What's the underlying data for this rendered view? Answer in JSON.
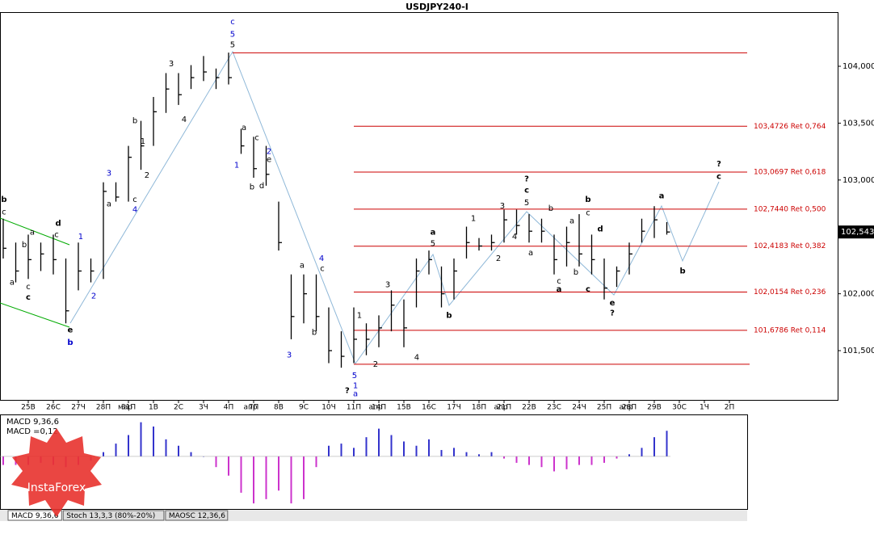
{
  "chart_data": {
    "type": "ohlc",
    "title": "USDJPY240-I",
    "categories": [
      null,
      null,
      "25В",
      null,
      "26С",
      null,
      "27Ч",
      null,
      "28П",
      null,
      "31П",
      null,
      "1В",
      null,
      "2С",
      null,
      "3Ч",
      null,
      "4П",
      null,
      "7П",
      null,
      "8В",
      null,
      "9С",
      null,
      "10Ч",
      null,
      "11П",
      null,
      "14П",
      null,
      "15В",
      null,
      "16С",
      null,
      "17Ч",
      null,
      "18П",
      null,
      "21П",
      null,
      "22В",
      null,
      "23С",
      null,
      "24Ч",
      null,
      "25П",
      null,
      "28П",
      null,
      "29В",
      null,
      "30С",
      null,
      "1Ч",
      null,
      "2П",
      null
    ],
    "month_labels": [
      null,
      null,
      null,
      null,
      null,
      null,
      null,
      null,
      null,
      null,
      "мар",
      null,
      null,
      null,
      null,
      null,
      null,
      null,
      null,
      null,
      "апр",
      null,
      null,
      null,
      null,
      null,
      null,
      null,
      null,
      null,
      "апр",
      null,
      null,
      null,
      null,
      null,
      null,
      null,
      null,
      null,
      "апр",
      null,
      null,
      null,
      null,
      null,
      null,
      null,
      null,
      null,
      "апр",
      null,
      null,
      null,
      null,
      null,
      null,
      null,
      null,
      null
    ],
    "high": [
      102.66,
      102.45,
      102.52,
      102.45,
      102.52,
      102.31,
      102.45,
      102.31,
      102.98,
      102.98,
      103.3,
      103.52,
      103.73,
      103.94,
      103.94,
      104.01,
      104.09,
      103.98,
      104.12,
      103.45,
      103.38,
      103.3,
      102.81,
      102.17,
      102.17,
      102.17,
      101.88,
      101.67,
      101.88,
      101.74,
      101.81,
      102.03,
      101.95,
      102.31,
      102.38,
      102.24,
      102.31,
      102.59,
      102.49,
      102.52,
      102.74,
      102.74,
      102.7,
      102.66,
      102.52,
      102.59,
      102.7,
      102.52,
      102.31,
      102.24,
      102.45,
      102.66,
      102.77,
      102.63,
      null,
      null,
      null,
      null,
      null,
      null
    ],
    "low": [
      102.31,
      102.1,
      102.13,
      102.2,
      102.17,
      101.74,
      102.03,
      102.1,
      102.13,
      102.81,
      102.81,
      103.09,
      103.3,
      103.59,
      103.66,
      103.8,
      103.87,
      103.8,
      103.84,
      103.23,
      103.02,
      102.95,
      102.38,
      101.6,
      101.74,
      101.67,
      101.39,
      101.35,
      101.39,
      101.46,
      101.53,
      101.67,
      101.53,
      101.88,
      102.17,
      101.88,
      101.95,
      102.31,
      102.38,
      102.38,
      102.45,
      102.52,
      102.45,
      102.45,
      102.17,
      102.24,
      102.24,
      102.17,
      101.95,
      102.06,
      102.17,
      102.45,
      102.49,
      102.52,
      null,
      null,
      null,
      null,
      null,
      null
    ],
    "close": [
      102.4,
      102.2,
      102.3,
      102.35,
      102.3,
      101.85,
      102.2,
      102.2,
      102.9,
      102.85,
      103.2,
      103.3,
      103.6,
      103.8,
      103.75,
      103.9,
      103.95,
      103.9,
      103.9,
      103.3,
      103.1,
      103.05,
      102.45,
      101.8,
      102.0,
      101.8,
      101.5,
      101.45,
      101.6,
      101.6,
      101.7,
      101.9,
      101.7,
      102.2,
      102.3,
      102.0,
      102.2,
      102.45,
      102.42,
      102.45,
      102.65,
      102.6,
      102.55,
      102.55,
      102.3,
      102.45,
      102.35,
      102.3,
      102.05,
      102.2,
      102.35,
      102.55,
      102.65,
      102.543,
      null,
      null,
      null,
      null,
      null,
      null
    ],
    "bar_color": "#000000",
    "ylim": [
      101.067,
      104.476
    ],
    "yticks": [
      {
        "value": 104,
        "label": "104,000"
      },
      {
        "value": 103.5,
        "label": "103,500"
      },
      {
        "value": 103,
        "label": "103,000"
      },
      {
        "value": 102,
        "label": "102,000"
      },
      {
        "value": 101.5,
        "label": "101,500"
      }
    ],
    "last_price": {
      "value": 102.543,
      "label": "102,543"
    },
    "level_color": "#cc0000",
    "levels": [
      {
        "value": 104.118
      },
      {
        "value": 103.4726,
        "label": "103,4726 Ret 0,764"
      },
      {
        "value": 103.0697,
        "label": "103,0697 Ret 0,618"
      },
      {
        "value": 102.744,
        "label": "102,7440 Ret 0,500"
      },
      {
        "value": 102.4183,
        "label": "102,4183 Ret 0,382"
      },
      {
        "value": 102.0154,
        "label": "102,0154 Ret 0,236"
      },
      {
        "value": 101.6786,
        "label": "101,6786 Ret 0,114"
      },
      {
        "value": 101.38
      }
    ],
    "annotations": [
      {
        "text": "b",
        "slot": 0.06,
        "price": 102.83,
        "color": "#000000",
        "bold": true
      },
      {
        "text": "c",
        "slot": 0.06,
        "price": 102.72,
        "color": "#000000"
      },
      {
        "text": "a",
        "slot": 2.32,
        "price": 102.54,
        "color": "#000000"
      },
      {
        "text": "b",
        "slot": 1.68,
        "price": 102.43,
        "color": "#000000"
      },
      {
        "text": "a",
        "slot": 0.71,
        "price": 102.1,
        "color": "#000000"
      },
      {
        "text": "c",
        "slot": 2,
        "price": 102.06,
        "color": "#000000"
      },
      {
        "text": "c",
        "slot": 2,
        "price": 101.97,
        "color": "#000000",
        "bold": true
      },
      {
        "text": "d",
        "slot": 4.39,
        "price": 102.62,
        "color": "#000000",
        "bold": true
      },
      {
        "text": "c",
        "slot": 4.26,
        "price": 102.52,
        "color": "#000000"
      },
      {
        "text": "1",
        "slot": 6.19,
        "price": 102.5,
        "color": "#0000cc"
      },
      {
        "text": "2",
        "slot": 7.23,
        "price": 101.98,
        "color": "#0000cc"
      },
      {
        "text": "e",
        "slot": 5.35,
        "price": 101.68,
        "color": "#000000",
        "bold": true
      },
      {
        "text": "b",
        "slot": 5.35,
        "price": 101.57,
        "color": "#0000cc",
        "bold": true
      },
      {
        "text": "3",
        "slot": 8.45,
        "price": 103.06,
        "color": "#0000cc"
      },
      {
        "text": "a",
        "slot": 8.45,
        "price": 102.79,
        "color": "#000000"
      },
      {
        "text": "c",
        "slot": 10.52,
        "price": 102.83,
        "color": "#000000"
      },
      {
        "text": "4",
        "slot": 10.52,
        "price": 102.74,
        "color": "#0000cc"
      },
      {
        "text": "b",
        "slot": 10.52,
        "price": 103.52,
        "color": "#000000"
      },
      {
        "text": "1",
        "slot": 11.16,
        "price": 103.34,
        "color": "#000000"
      },
      {
        "text": "2",
        "slot": 11.48,
        "price": 103.04,
        "color": "#000000"
      },
      {
        "text": "3",
        "slot": 13.42,
        "price": 104.02,
        "color": "#000000"
      },
      {
        "text": "4",
        "slot": 14.45,
        "price": 103.53,
        "color": "#000000"
      },
      {
        "text": "c",
        "slot": 18.32,
        "price": 104.39,
        "color": "#0000cc"
      },
      {
        "text": "5",
        "slot": 18.32,
        "price": 104.28,
        "color": "#0000cc"
      },
      {
        "text": "5",
        "slot": 18.32,
        "price": 104.19,
        "color": "#000000"
      },
      {
        "text": "1",
        "slot": 18.65,
        "price": 103.13,
        "color": "#0000cc"
      },
      {
        "text": "a",
        "slot": 19.23,
        "price": 103.46,
        "color": "#000000"
      },
      {
        "text": "c",
        "slot": 20.26,
        "price": 103.37,
        "color": "#000000"
      },
      {
        "text": "2",
        "slot": 21.23,
        "price": 103.25,
        "color": "#0000cc"
      },
      {
        "text": "e",
        "slot": 21.23,
        "price": 103.18,
        "color": "#000000"
      },
      {
        "text": "b",
        "slot": 19.87,
        "price": 102.94,
        "color": "#000000"
      },
      {
        "text": "d",
        "slot": 20.65,
        "price": 102.95,
        "color": "#000000"
      },
      {
        "text": "4",
        "slot": 25.42,
        "price": 102.31,
        "color": "#0000cc"
      },
      {
        "text": "a",
        "slot": 23.87,
        "price": 102.25,
        "color": "#000000"
      },
      {
        "text": "c",
        "slot": 25.48,
        "price": 102.22,
        "color": "#000000"
      },
      {
        "text": "b",
        "slot": 24.84,
        "price": 101.66,
        "color": "#000000"
      },
      {
        "text": "3",
        "slot": 22.84,
        "price": 101.46,
        "color": "#0000cc"
      },
      {
        "text": "1",
        "slot": 28.45,
        "price": 101.81,
        "color": "#000000"
      },
      {
        "text": "2",
        "slot": 29.74,
        "price": 101.38,
        "color": "#000000"
      },
      {
        "text": "3",
        "slot": 30.71,
        "price": 102.08,
        "color": "#000000"
      },
      {
        "text": "4",
        "slot": 33.03,
        "price": 101.44,
        "color": "#000000"
      },
      {
        "text": "5",
        "slot": 28.06,
        "price": 101.28,
        "color": "#0000cc"
      },
      {
        "text": "1",
        "slot": 28.13,
        "price": 101.19,
        "color": "#0000cc"
      },
      {
        "text": "a",
        "slot": 28.13,
        "price": 101.12,
        "color": "#0000cc"
      },
      {
        "text": "?",
        "slot": 27.48,
        "price": 101.15,
        "color": "#000000",
        "bold": true
      },
      {
        "text": "a",
        "slot": 34.32,
        "price": 102.54,
        "color": "#000000",
        "bold": true
      },
      {
        "text": "5",
        "slot": 34.32,
        "price": 102.44,
        "color": "#000000"
      },
      {
        "text": "b",
        "slot": 35.61,
        "price": 101.81,
        "color": "#000000",
        "bold": true
      },
      {
        "text": "1",
        "slot": 37.55,
        "price": 102.66,
        "color": "#000000"
      },
      {
        "text": "2",
        "slot": 39.55,
        "price": 102.31,
        "color": "#000000"
      },
      {
        "text": "3",
        "slot": 39.87,
        "price": 102.77,
        "color": "#000000"
      },
      {
        "text": "4",
        "slot": 40.84,
        "price": 102.5,
        "color": "#000000"
      },
      {
        "text": "5",
        "slot": 41.81,
        "price": 102.8,
        "color": "#000000"
      },
      {
        "text": "c",
        "slot": 41.81,
        "price": 102.91,
        "color": "#000000",
        "bold": true
      },
      {
        "text": "?",
        "slot": 41.81,
        "price": 103.01,
        "color": "#000000",
        "bold": true
      },
      {
        "text": "a",
        "slot": 42.13,
        "price": 102.36,
        "color": "#000000"
      },
      {
        "text": "b",
        "slot": 43.74,
        "price": 102.75,
        "color": "#000000"
      },
      {
        "text": "c",
        "slot": 44.39,
        "price": 102.11,
        "color": "#000000"
      },
      {
        "text": "a",
        "slot": 44.39,
        "price": 102.04,
        "color": "#000000",
        "bold": true
      },
      {
        "text": "b",
        "slot": 45.74,
        "price": 102.19,
        "color": "#000000"
      },
      {
        "text": "a",
        "slot": 45.42,
        "price": 102.64,
        "color": "#000000"
      },
      {
        "text": "c",
        "slot": 46.71,
        "price": 102.71,
        "color": "#000000"
      },
      {
        "text": "b",
        "slot": 46.71,
        "price": 102.83,
        "color": "#000000",
        "bold": true
      },
      {
        "text": "d",
        "slot": 47.68,
        "price": 102.57,
        "color": "#000000",
        "bold": true
      },
      {
        "text": "c",
        "slot": 46.71,
        "price": 102.04,
        "color": "#000000",
        "bold": true
      },
      {
        "text": "e",
        "slot": 48.65,
        "price": 101.92,
        "color": "#000000",
        "bold": true
      },
      {
        "text": "?",
        "slot": 48.65,
        "price": 101.83,
        "color": "#000000",
        "bold": true
      },
      {
        "text": "a",
        "slot": 52.58,
        "price": 102.86,
        "color": "#000000",
        "bold": true
      },
      {
        "text": "b",
        "slot": 54.26,
        "price": 102.2,
        "color": "#000000",
        "bold": true
      },
      {
        "text": "c",
        "slot": 57.16,
        "price": 103.03,
        "color": "#000000",
        "bold": true
      },
      {
        "text": "?",
        "slot": 57.16,
        "price": 103.14,
        "color": "#000000",
        "bold": true
      }
    ],
    "macd": {
      "label": "MACD 9,36,6",
      "value_label": "MACD =0,12",
      "ylim": [
        -0.246,
        0.189
      ],
      "positive_color": "#3333cc",
      "negative_color": "#cc33cc",
      "values": [
        -0.04,
        -0.04,
        -0.04,
        -0.03,
        -0.04,
        -0.05,
        -0.04,
        -0.02,
        0.02,
        0.06,
        0.1,
        0.16,
        0.14,
        0.08,
        0.05,
        0.02,
        0,
        -0.05,
        -0.09,
        -0.17,
        -0.22,
        -0.2,
        -0.16,
        -0.22,
        -0.2,
        -0.05,
        0.05,
        0.06,
        0.04,
        0.09,
        0.13,
        0.1,
        0.07,
        0.05,
        0.08,
        0.03,
        0.04,
        0.02,
        0.01,
        0.02,
        -0.01,
        -0.03,
        -0.04,
        -0.05,
        -0.07,
        -0.06,
        -0.04,
        -0.04,
        -0.03,
        -0.01,
        0.01,
        0.04,
        0.09,
        0.12,
        null,
        null,
        null,
        null,
        null,
        null
      ]
    },
    "tabs": [
      "MACD 9,36,6",
      "Stoch 13,3,3 (80%-20%)",
      "MAOSC 12,36,6"
    ],
    "watermark": "InstaForex"
  }
}
